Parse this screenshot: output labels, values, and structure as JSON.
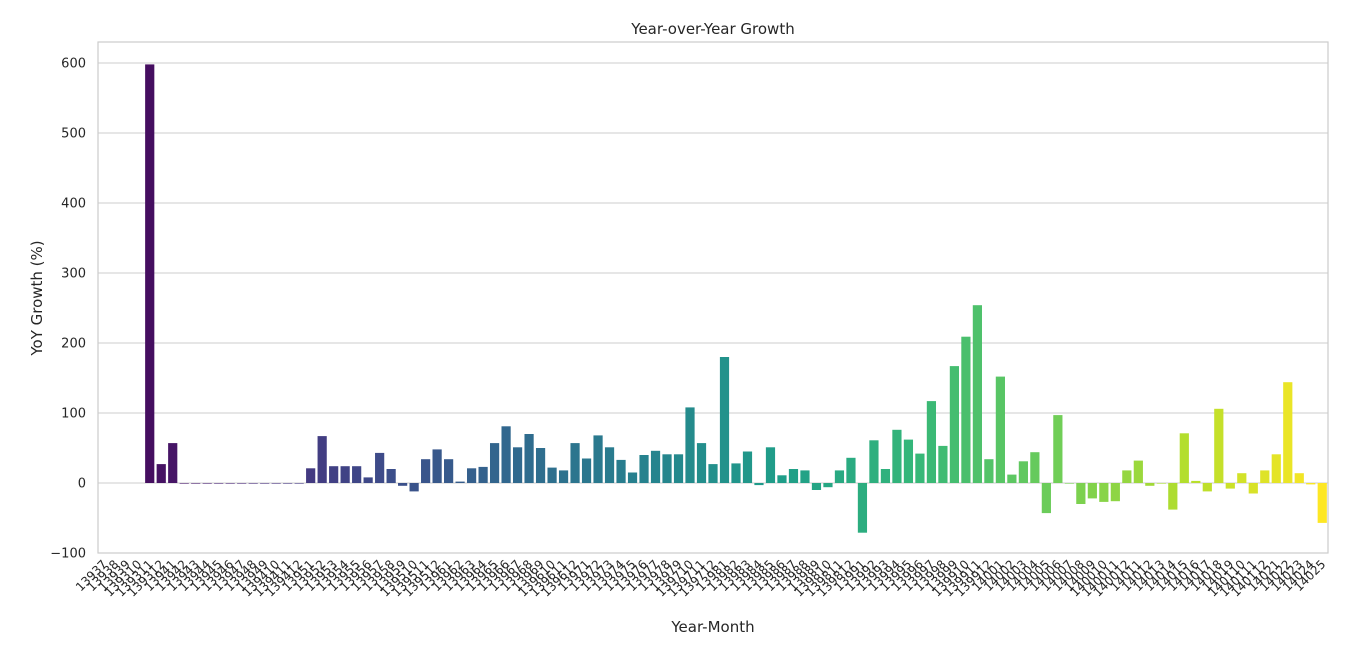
{
  "chart_data": {
    "type": "bar",
    "title": "Year-over-Year Growth",
    "xlabel": "Year-Month",
    "ylabel": "YoY Growth (%)",
    "ylim": [
      -100,
      630
    ],
    "yticks": [
      -100,
      0,
      100,
      200,
      300,
      400,
      500,
      600
    ],
    "yticks_labels": [
      "−100",
      "0",
      "100",
      "200",
      "300",
      "400",
      "500",
      "600"
    ],
    "grid": true,
    "legend": "none",
    "palette": "viridis",
    "categories": [
      "13937",
      "13938",
      "13939",
      "139310",
      "139311",
      "139312",
      "13941",
      "13942",
      "13943",
      "13944",
      "13945",
      "13946",
      "13947",
      "13948",
      "13949",
      "139410",
      "139411",
      "139412",
      "13951",
      "13952",
      "13953",
      "13954",
      "13955",
      "13956",
      "13957",
      "13958",
      "13959",
      "139510",
      "139511",
      "139512",
      "13961",
      "13962",
      "13963",
      "13964",
      "13965",
      "13966",
      "13967",
      "13968",
      "13969",
      "139610",
      "139611",
      "139612",
      "13971",
      "13972",
      "13973",
      "13974",
      "13975",
      "13976",
      "13977",
      "13978",
      "13979",
      "139710",
      "139711",
      "139712",
      "13981",
      "13982",
      "13983",
      "13984",
      "13985",
      "13986",
      "13987",
      "13988",
      "13989",
      "139810",
      "139811",
      "139812",
      "13991",
      "13992",
      "13993",
      "13994",
      "13995",
      "13996",
      "13997",
      "13998",
      "13999",
      "139910",
      "139911",
      "139912",
      "14001",
      "14002",
      "14003",
      "14004",
      "14005",
      "14006",
      "14007",
      "14008",
      "14009",
      "140010",
      "140011",
      "140012",
      "14011",
      "14012",
      "14013",
      "14014",
      "14015",
      "14016",
      "14017",
      "14018",
      "14019",
      "140110",
      "140111",
      "140112",
      "14021",
      "14022",
      "14023",
      "14024",
      "14025"
    ],
    "xtick_labels": [
      "13937",
      "13938",
      "13939",
      "139310",
      "139311",
      "139312",
      "13941",
      "13942",
      "13943",
      "13944",
      "13945",
      "13946",
      "13947",
      "13948",
      "13949",
      "139410",
      "139411",
      "139412",
      "13951",
      "13952",
      "13953",
      "13954",
      "13955",
      "13956",
      "13957",
      "13958",
      "13959",
      "139510",
      "139511",
      "139512",
      "13961",
      "13962",
      "13963",
      "13964",
      "13965",
      "13966",
      "13967",
      "13968",
      "13969",
      "139610",
      "139611",
      "139612",
      "13971",
      "13972",
      "13973",
      "13974",
      "13975",
      "13976",
      "13977",
      "13978",
      "13979",
      "139710",
      "139711",
      "139712",
      "13981",
      "13982",
      "13983",
      "13984",
      "13985",
      "13986",
      "13987",
      "13988",
      "13989",
      "139810",
      "139811",
      "139812",
      "13991",
      "13992",
      "13993",
      "13994",
      "13995",
      "13996",
      "13997",
      "13998",
      "13999",
      "139910",
      "139911",
      "139912",
      "14001",
      "14002",
      "14003",
      "14004",
      "14005",
      "14006",
      "14007",
      "14008",
      "14009",
      "140010",
      "140011",
      "140012",
      "14011",
      "14012",
      "14013",
      "14014",
      "14015",
      "14016",
      "14017",
      "14018",
      "14019",
      "140110",
      "140111",
      "140112",
      "14021",
      "14022",
      "14023",
      "14024",
      "14025"
    ],
    "values": [
      null,
      null,
      null,
      null,
      598,
      27,
      57,
      0,
      0,
      0,
      0,
      0,
      0,
      0,
      0,
      0,
      0,
      0,
      21,
      67,
      24,
      24,
      24,
      8,
      43,
      20,
      -4,
      -12,
      34,
      48,
      34,
      2,
      21,
      23,
      57,
      81,
      51,
      70,
      50,
      22,
      18,
      57,
      35,
      68,
      51,
      33,
      15,
      40,
      46,
      41,
      41,
      108,
      57,
      27,
      180,
      28,
      45,
      -3,
      51,
      11,
      20,
      18,
      -10,
      -6,
      18,
      36,
      -71,
      61,
      20,
      76,
      62,
      42,
      117,
      53,
      167,
      209,
      254,
      34,
      152,
      12,
      31,
      44,
      -43,
      97,
      0,
      -30,
      -22,
      -27,
      -26,
      18,
      32,
      -4,
      0,
      -38,
      71,
      3,
      -12,
      106,
      -8,
      14,
      -15,
      18,
      41,
      144,
      14,
      -2,
      -57
    ]
  }
}
